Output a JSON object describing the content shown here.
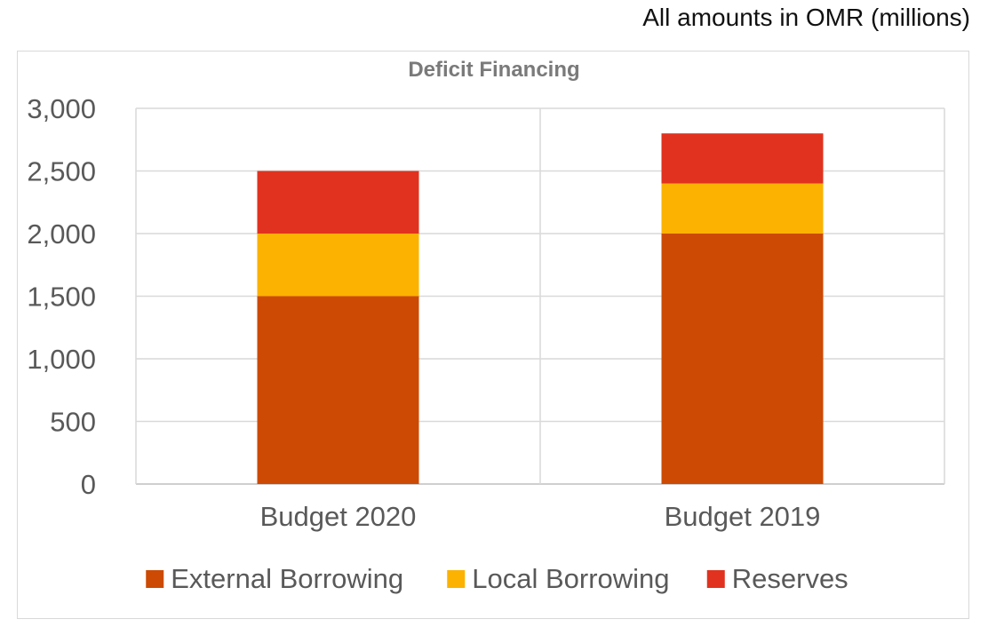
{
  "note": "All amounts in OMR (millions)",
  "chart_data": {
    "type": "bar",
    "stacked": true,
    "title": "Deficit Financing",
    "xlabel": "",
    "ylabel": "",
    "categories": [
      "Budget 2020",
      "Budget 2019"
    ],
    "series": [
      {
        "name": "External Borrowing",
        "color": "#cc4a04",
        "values": [
          1500,
          2000
        ]
      },
      {
        "name": "Local Borrowing",
        "color": "#fbb200",
        "values": [
          500,
          400
        ]
      },
      {
        "name": "Reserves",
        "color": "#e0321e",
        "values": [
          500,
          400
        ]
      }
    ],
    "ylim": [
      0,
      3000
    ],
    "yticks": [
      0,
      500,
      1000,
      1500,
      2000,
      2500,
      3000
    ],
    "ytick_labels": [
      "0",
      "500",
      "1,000",
      "1,500",
      "2,000",
      "2,500",
      "3,000"
    ],
    "grid": true,
    "legend": "bottom"
  }
}
